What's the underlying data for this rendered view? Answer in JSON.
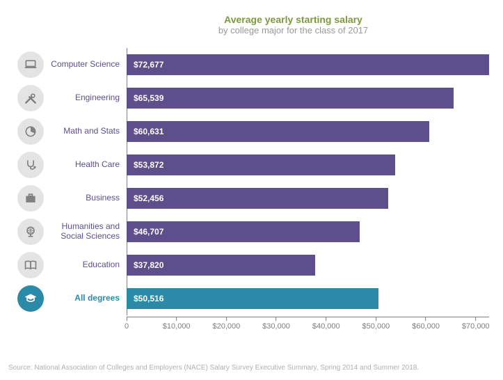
{
  "chart": {
    "type": "bar-horizontal",
    "title": "Average yearly starting salary",
    "subtitle": "by college major for the class of 2017",
    "title_color": "#7a9a3b",
    "subtitle_color": "#9a9a9a",
    "title_fontsize": 14,
    "subtitle_fontsize": 13,
    "bar_label_color": "#ffffff",
    "label_fontsize": 12,
    "background": "#ffffff",
    "xmax": 72677,
    "xtick_vals": [
      0,
      10000,
      20000,
      30000,
      40000,
      50000,
      60000,
      70000
    ],
    "xtick_labels": [
      "0",
      "$10,000",
      "$20,000",
      "$30,000",
      "$40,000",
      "$50,000",
      "$60,000",
      "$70,000"
    ],
    "axis_color": "#808080",
    "grid_color": "#d9d9d9",
    "icon_bg_default": "#e4e4e4",
    "icon_fg_default": "#808080",
    "rows": [
      {
        "id": "cs",
        "label": "Computer Science",
        "value": 72677,
        "value_label": "$72,677",
        "bar_color": "#5d4e8c",
        "label_color": "#5d4e8c",
        "icon": "laptop",
        "icon_bg": "#e4e4e4",
        "icon_fg": "#808080"
      },
      {
        "id": "eng",
        "label": "Engineering",
        "value": 65539,
        "value_label": "$65,539",
        "bar_color": "#5d4e8c",
        "label_color": "#5d4e8c",
        "icon": "tools",
        "icon_bg": "#e4e4e4",
        "icon_fg": "#808080"
      },
      {
        "id": "math",
        "label": "Math and Stats",
        "value": 60631,
        "value_label": "$60,631",
        "bar_color": "#5d4e8c",
        "label_color": "#5d4e8c",
        "icon": "piechart",
        "icon_bg": "#e4e4e4",
        "icon_fg": "#808080"
      },
      {
        "id": "health",
        "label": "Health Care",
        "value": 53872,
        "value_label": "$53,872",
        "bar_color": "#5d4e8c",
        "label_color": "#5d4e8c",
        "icon": "steth",
        "icon_bg": "#e4e4e4",
        "icon_fg": "#808080"
      },
      {
        "id": "biz",
        "label": "Business",
        "value": 52456,
        "value_label": "$52,456",
        "bar_color": "#5d4e8c",
        "label_color": "#5d4e8c",
        "icon": "briefcase",
        "icon_bg": "#e4e4e4",
        "icon_fg": "#808080"
      },
      {
        "id": "hum",
        "label": "Humanities and Social Sciences",
        "value": 46707,
        "value_label": "$46,707",
        "bar_color": "#5d4e8c",
        "label_color": "#5d4e8c",
        "icon": "globe",
        "icon_bg": "#e4e4e4",
        "icon_fg": "#808080"
      },
      {
        "id": "edu",
        "label": "Education",
        "value": 37820,
        "value_label": "$37,820",
        "bar_color": "#5d4e8c",
        "label_color": "#5d4e8c",
        "icon": "book",
        "icon_bg": "#e4e4e4",
        "icon_fg": "#808080"
      },
      {
        "id": "all",
        "label": "All degrees",
        "value": 50516,
        "value_label": "$50,516",
        "bar_color": "#2a8aa8",
        "label_color": "#2a8aa8",
        "icon": "gradcap",
        "icon_bg": "#2a8aa8",
        "icon_fg": "#ffffff",
        "bold": true
      }
    ],
    "source": "Source: National Association of Colleges and Employers (NACE) Salary Survey Executive Summary, Spring 2014 and Summer 2018.",
    "source_color": "#b0b0b0"
  }
}
